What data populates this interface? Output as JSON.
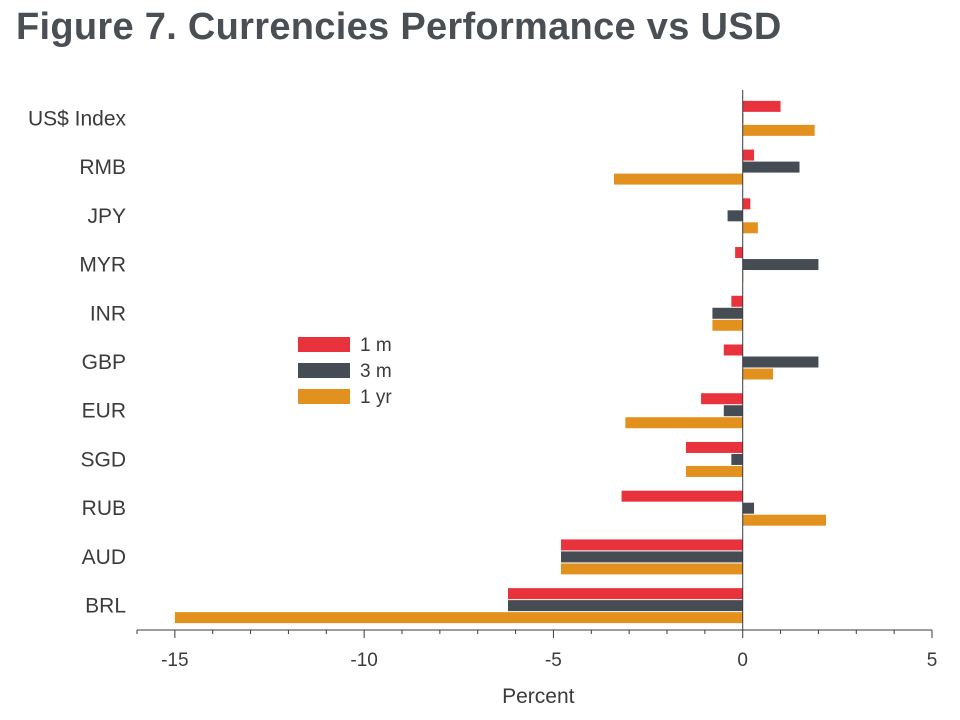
{
  "title": "Figure 7. Currencies Performance vs USD",
  "colors": {
    "1 m": "#e8333c",
    "3 m": "#454c53",
    "1 yr": "#e2911f",
    "axis": "#3b3b3b"
  },
  "chart_data": {
    "type": "bar",
    "orientation": "horizontal",
    "title": "Figure 7. Currencies Performance vs USD",
    "xlabel": "Percent",
    "ylabel": "",
    "xlim": [
      -16,
      5
    ],
    "xticks": [
      "-15",
      "-10",
      "-5",
      "0",
      "5"
    ],
    "grid": false,
    "legend_position": "center-left",
    "categories": [
      "US$ Index",
      "RMB",
      "JPY",
      "MYR",
      "INR",
      "GBP",
      "EUR",
      "SGD",
      "RUB",
      "AUD",
      "BRL"
    ],
    "series": [
      {
        "name": "1 m",
        "values": [
          1.0,
          0.3,
          0.2,
          -0.2,
          -0.3,
          -0.5,
          -1.1,
          -1.5,
          -3.2,
          -4.8,
          -6.2
        ]
      },
      {
        "name": "3 m",
        "values": [
          0.0,
          1.5,
          -0.4,
          2.0,
          -0.8,
          2.0,
          -0.5,
          -0.3,
          0.3,
          -4.8,
          -6.2
        ]
      },
      {
        "name": "1 yr",
        "values": [
          1.9,
          -3.4,
          0.4,
          0.0,
          -0.8,
          0.8,
          -3.1,
          -1.5,
          2.2,
          -4.8,
          -15.0
        ]
      }
    ]
  }
}
